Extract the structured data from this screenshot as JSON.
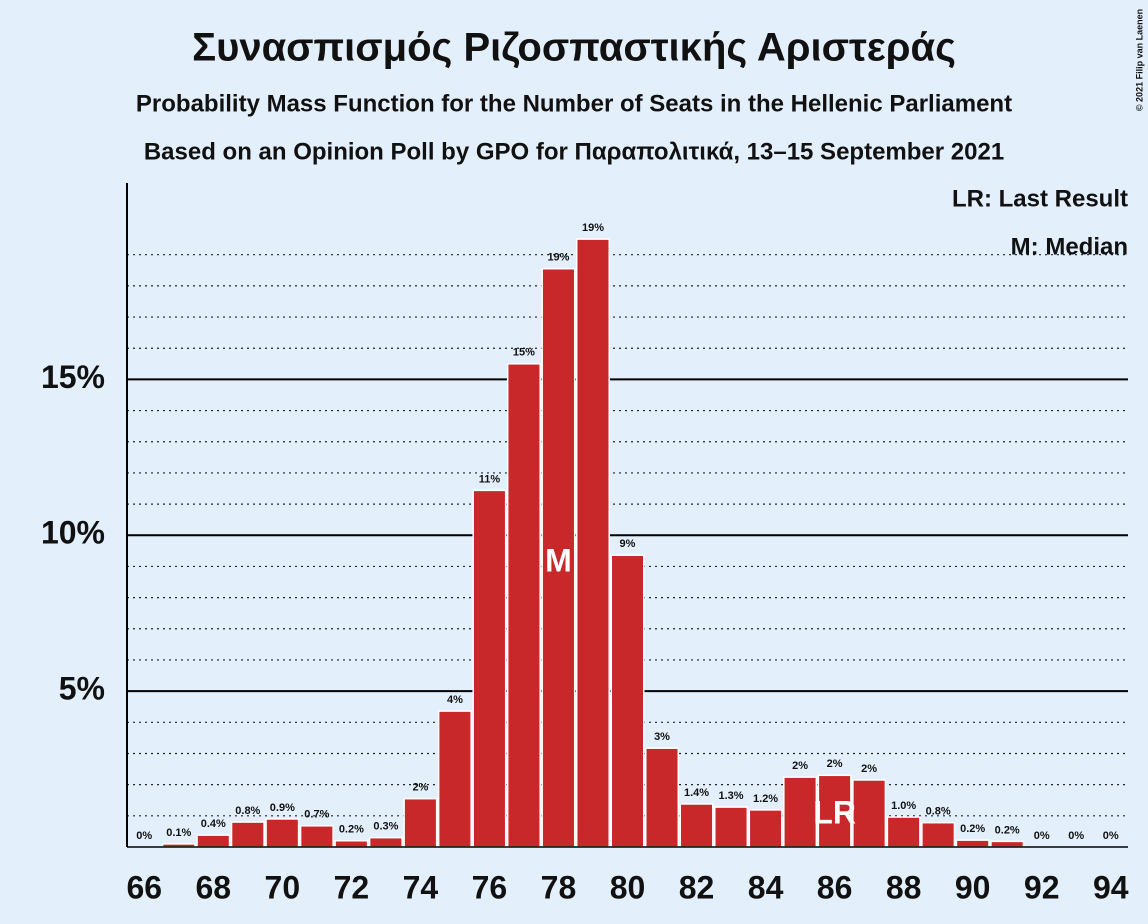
{
  "chart_data": {
    "type": "bar",
    "title": "Συνασπισμός Ριζοσπαστικής Αριστεράς",
    "subtitle": "Probability Mass Function for the Number of Seats in the Hellenic Parliament",
    "subtitle2": "Based on an Opinion Poll by GPO for Παραπολιτικά, 13–15 September 2021",
    "copyright": "© 2021 Filip van Laenen",
    "legend": [
      "LR: Last Result",
      "M: Median"
    ],
    "x": [
      66,
      67,
      68,
      69,
      70,
      71,
      72,
      73,
      74,
      75,
      76,
      77,
      78,
      79,
      80,
      81,
      82,
      83,
      84,
      85,
      86,
      87,
      88,
      89,
      90,
      91,
      92,
      93,
      94
    ],
    "values": [
      0,
      0.1,
      0.38,
      0.8,
      0.9,
      0.68,
      0.2,
      0.3,
      1.55,
      4.36,
      11.44,
      15.5,
      18.55,
      19.5,
      9.36,
      3.17,
      1.38,
      1.28,
      1.19,
      2.24,
      2.3,
      2.15,
      0.96,
      0.78,
      0.22,
      0.18,
      0,
      0,
      0
    ],
    "value_labels": [
      "0%",
      "0.1%",
      "0.4%",
      "0.8%",
      "0.9%",
      "0.7%",
      "0.2%",
      "0.3%",
      "2%",
      "4%",
      "11%",
      "15%",
      "19%",
      "19%",
      "9%",
      "3%",
      "1.4%",
      "1.3%",
      "1.2%",
      "2%",
      "2%",
      "2%",
      "1.0%",
      "0.8%",
      "0.2%",
      "0.2%",
      "0%",
      "0%",
      "0%"
    ],
    "color": "#c8282a",
    "markers": [
      {
        "x": 78,
        "label": "M"
      },
      {
        "x": 86,
        "label": "LR"
      }
    ],
    "xlim": [
      65.5,
      94.5
    ],
    "xticks": [
      66,
      68,
      70,
      72,
      74,
      76,
      78,
      80,
      82,
      84,
      86,
      88,
      90,
      92,
      94
    ],
    "ylim": [
      0,
      21.3
    ],
    "yticks": [
      {
        "value": 5,
        "label": "5%"
      },
      {
        "value": 10,
        "label": "10%"
      },
      {
        "value": 15,
        "label": "15%"
      }
    ],
    "minor_yticks": [
      1,
      2,
      3,
      4,
      6,
      7,
      8,
      9,
      11,
      12,
      13,
      14,
      16,
      17,
      18,
      19
    ],
    "grid": true
  }
}
